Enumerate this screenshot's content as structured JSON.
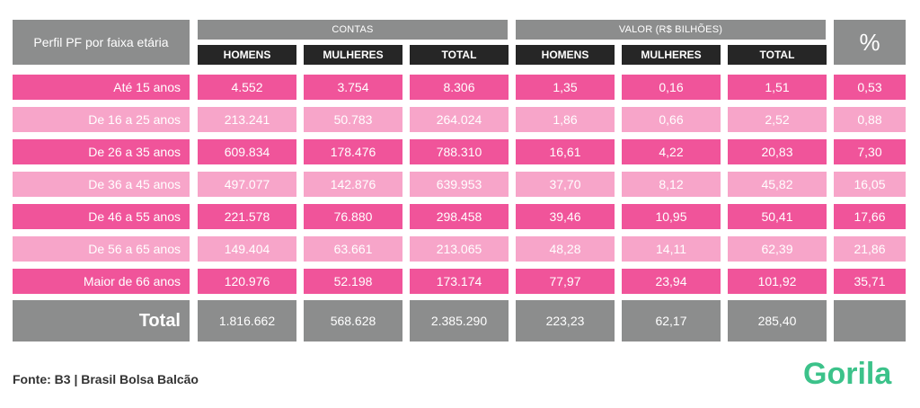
{
  "header": {
    "profile_label": "Perfil PF por faixa etária",
    "group_contas": "CONTAS",
    "group_valor": "VALOR (R$ BILHÕES)",
    "percent_symbol": "%",
    "sub_labels": [
      "HOMENS",
      "MULHERES",
      "TOTAL",
      "HOMENS",
      "MULHERES",
      "TOTAL"
    ]
  },
  "rows": [
    {
      "label": "Até 15 anos",
      "values": [
        "4.552",
        "3.754",
        "8.306",
        "1,35",
        "0,16",
        "1,51",
        "0,53"
      ]
    },
    {
      "label": "De 16 a 25 anos",
      "values": [
        "213.241",
        "50.783",
        "264.024",
        "1,86",
        "0,66",
        "2,52",
        "0,88"
      ]
    },
    {
      "label": "De 26 a 35 anos",
      "values": [
        "609.834",
        "178.476",
        "788.310",
        "16,61",
        "4,22",
        "20,83",
        "7,30"
      ]
    },
    {
      "label": "De 36 a 45 anos",
      "values": [
        "497.077",
        "142.876",
        "639.953",
        "37,70",
        "8,12",
        "45,82",
        "16,05"
      ]
    },
    {
      "label": "De 46 a 55 anos",
      "values": [
        "221.578",
        "76.880",
        "298.458",
        "39,46",
        "10,95",
        "50,41",
        "17,66"
      ]
    },
    {
      "label": "De 56 a 65 anos",
      "values": [
        "149.404",
        "63.661",
        "213.065",
        "48,28",
        "14,11",
        "62,39",
        "21,86"
      ]
    },
    {
      "label": "Maior de 66 anos",
      "values": [
        "120.976",
        "52.198",
        "173.174",
        "77,97",
        "23,94",
        "101,92",
        "35,71"
      ]
    }
  ],
  "total": {
    "label": "Total",
    "values": [
      "1.816.662",
      "568.628",
      "2.385.290",
      "223,23",
      "62,17",
      "285,40",
      ""
    ]
  },
  "footer": {
    "source": "Fonte: B3 | Brasil Bolsa Balcão"
  },
  "logo": {
    "text": "Gorila",
    "color": "#3cc28a"
  },
  "colors": {
    "pink_dark": "#f0549a",
    "pink_light": "#f7a5c9",
    "gray": "#8c8d8d",
    "black": "#262626"
  }
}
